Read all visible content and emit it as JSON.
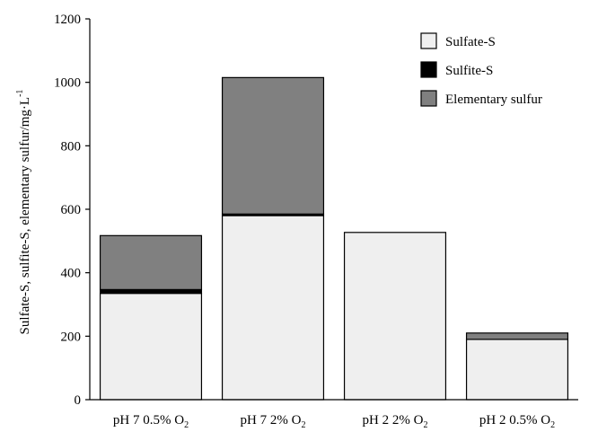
{
  "chart_data": {
    "type": "bar",
    "stacked": true,
    "categories": [
      {
        "main": "pH 7 0.5% O",
        "sub": "2"
      },
      {
        "main": "pH 7 2% O",
        "sub": "2"
      },
      {
        "main": "pH 2 2% O",
        "sub": "2"
      },
      {
        "main": "pH 2 0.5% O",
        "sub": "2"
      }
    ],
    "series": [
      {
        "name": "Sulfate-S",
        "color": "#efefef",
        "values": [
          335,
          580,
          527,
          190
        ]
      },
      {
        "name": "Sulfite-S",
        "color": "#000000",
        "values": [
          12,
          5,
          0,
          0
        ]
      },
      {
        "name": "Elementary sulfur",
        "color": "#808080",
        "values": [
          170,
          430,
          0,
          20
        ]
      }
    ],
    "ylabel": {
      "main": "Sulfate-S, sulfite-S, elementary sulfur/mg·L",
      "sup": "-1"
    },
    "xlabel": "",
    "ylim": [
      0,
      1200
    ],
    "yticks": [
      "0",
      "200",
      "400",
      "600",
      "800",
      "1000",
      "1200"
    ],
    "grid": false,
    "legend_position": "top-right"
  }
}
